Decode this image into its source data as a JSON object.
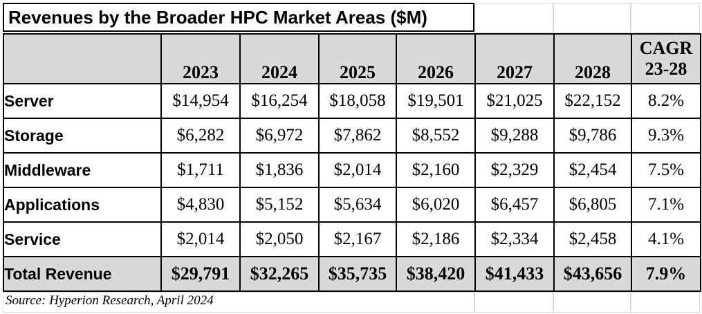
{
  "chart_data": {
    "type": "table",
    "title": "Revenues by the Broader HPC Market Areas ($M)",
    "columns": [
      "",
      "2023",
      "2024",
      "2025",
      "2026",
      "2027",
      "2028",
      "CAGR 23-28"
    ],
    "cagr_header": {
      "line1": "CAGR",
      "line2": "23-28"
    },
    "rows": [
      {
        "label": "Server",
        "values": [
          "$14,954",
          "$16,254",
          "$18,058",
          "$19,501",
          "$21,025",
          "$22,152",
          "8.2%"
        ]
      },
      {
        "label": "Storage",
        "values": [
          "$6,282",
          "$6,972",
          "$7,862",
          "$8,552",
          "$9,288",
          "$9,786",
          "9.3%"
        ]
      },
      {
        "label": "Middleware",
        "values": [
          "$1,711",
          "$1,836",
          "$2,014",
          "$2,160",
          "$2,329",
          "$2,454",
          "7.5%"
        ]
      },
      {
        "label": "Applications",
        "values": [
          "$4,830",
          "$5,152",
          "$5,634",
          "$6,020",
          "$6,457",
          "$6,805",
          "7.1%"
        ]
      },
      {
        "label": "Service",
        "values": [
          "$2,014",
          "$2,050",
          "$2,167",
          "$2,186",
          "$2,334",
          "$2,458",
          "4.1%"
        ]
      }
    ],
    "total": {
      "label": "Total Revenue",
      "values": [
        "$29,791",
        "$32,265",
        "$35,735",
        "$38,420",
        "$41,433",
        "$43,656",
        "7.9%"
      ]
    },
    "source": "Source: Hyperion Research, April 2024"
  },
  "colors": {
    "header_fill": "#d9d9d9",
    "total_fill": "#d9d9d9",
    "border": "#000000"
  }
}
